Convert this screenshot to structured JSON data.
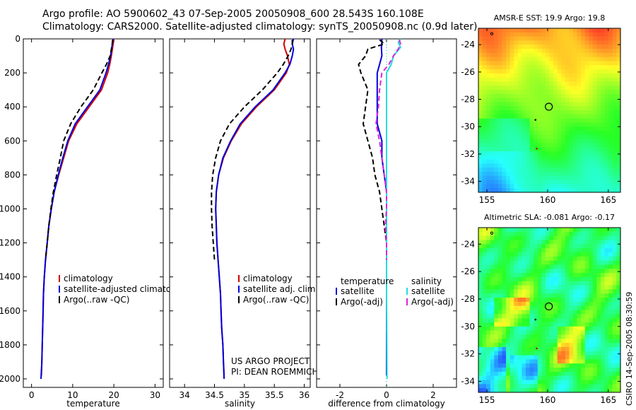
{
  "header": {
    "line1": "Argo profile: AO 5900602_43 07-Sep-2005 20050908_600 28.543S 160.108E",
    "line2": "Climatology: CARS2000. Satellite-adjusted climatology: synTS_20050908.nc (0.9d later)"
  },
  "colors": {
    "climatology": "#d40000",
    "satellite": "#0000dd",
    "argo": "#000000",
    "satellite_salinity": "#22dddd",
    "argo_salinity": "#dd22dd"
  },
  "side_label": "CSIRO 14-Sep-2005 08:30:59",
  "chart_data": [
    {
      "type": "line",
      "id": "temperature",
      "xlabel": "temperature",
      "xlim": [
        -2,
        32
      ],
      "ylim": [
        2050,
        0
      ],
      "xticks": [
        0,
        10,
        20,
        30
      ],
      "yticks": [
        0,
        200,
        400,
        600,
        800,
        1000,
        1200,
        1400,
        1600,
        1800,
        2000
      ],
      "legend": [
        "climatology",
        "satellite-adjusted climatology",
        "Argo(..raw -QC)"
      ],
      "series": [
        {
          "name": "climatology",
          "style": "solid",
          "color": "#d40000",
          "points": [
            [
              20.0,
              0
            ],
            [
              19.9,
              20
            ],
            [
              19.7,
              50
            ],
            [
              19.4,
              100
            ],
            [
              19.0,
              150
            ],
            [
              18.5,
              200
            ],
            [
              17.0,
              300
            ],
            [
              14.0,
              400
            ],
            [
              11.0,
              500
            ],
            [
              9.0,
              600
            ],
            [
              7.8,
              700
            ],
            [
              6.6,
              800
            ],
            [
              5.5,
              900
            ],
            [
              4.8,
              1000
            ],
            [
              4.2,
              1100
            ],
            [
              3.8,
              1200
            ],
            [
              3.4,
              1300
            ],
            [
              3.1,
              1400
            ],
            [
              2.9,
              1500
            ],
            [
              2.8,
              1600
            ],
            [
              2.7,
              1700
            ],
            [
              2.6,
              1800
            ],
            [
              2.5,
              1900
            ],
            [
              2.4,
              1980
            ]
          ]
        },
        {
          "name": "satellite-adjusted climatology",
          "style": "solid",
          "color": "#0000dd",
          "points": [
            [
              19.8,
              0
            ],
            [
              19.7,
              20
            ],
            [
              19.5,
              50
            ],
            [
              19.2,
              100
            ],
            [
              18.7,
              150
            ],
            [
              18.1,
              200
            ],
            [
              16.6,
              300
            ],
            [
              13.6,
              400
            ],
            [
              10.6,
              500
            ],
            [
              8.8,
              600
            ],
            [
              7.6,
              700
            ],
            [
              6.5,
              800
            ],
            [
              5.5,
              900
            ],
            [
              4.8,
              1000
            ],
            [
              4.2,
              1100
            ],
            [
              3.8,
              1200
            ],
            [
              3.4,
              1300
            ],
            [
              3.1,
              1400
            ],
            [
              2.9,
              1500
            ],
            [
              2.8,
              1600
            ],
            [
              2.7,
              1700
            ],
            [
              2.6,
              1800
            ],
            [
              2.5,
              1900
            ],
            [
              2.3,
              2000
            ]
          ]
        },
        {
          "name": "Argo(..raw -QC)",
          "style": "dashed",
          "color": "#000000",
          "points": [
            [
              19.7,
              5
            ],
            [
              19.6,
              30
            ],
            [
              19.4,
              60
            ],
            [
              19.1,
              100
            ],
            [
              18.2,
              150
            ],
            [
              17.1,
              200
            ],
            [
              15.0,
              300
            ],
            [
              12.0,
              400
            ],
            [
              9.5,
              500
            ],
            [
              7.8,
              600
            ],
            [
              7.0,
              700
            ],
            [
              6.1,
              800
            ],
            [
              5.3,
              900
            ],
            [
              4.7,
              1000
            ],
            [
              4.2,
              1100
            ],
            [
              3.8,
              1200
            ],
            [
              3.4,
              1300
            ]
          ]
        }
      ]
    },
    {
      "type": "line",
      "id": "salinity",
      "xlabel": "salinity",
      "xlim": [
        33.75,
        36.1
      ],
      "ylim": [
        2050,
        0
      ],
      "xticks": [
        34,
        34.5,
        35,
        35.5,
        36
      ],
      "legend": [
        "climatology",
        "satellite adj. clim.",
        "Argo(..raw -QC)"
      ],
      "annotation": [
        "US ARGO PROJECT",
        "PI: DEAN ROEMMICH"
      ],
      "series": [
        {
          "name": "climatology",
          "style": "solid",
          "color": "#d40000",
          "points": [
            [
              35.68,
              0
            ],
            [
              35.66,
              30
            ],
            [
              35.68,
              60
            ],
            [
              35.72,
              100
            ],
            [
              35.75,
              150
            ],
            [
              35.7,
              200
            ],
            [
              35.5,
              300
            ],
            [
              35.2,
              400
            ],
            [
              34.95,
              500
            ],
            [
              34.78,
              600
            ],
            [
              34.65,
              700
            ],
            [
              34.57,
              800
            ],
            [
              34.53,
              900
            ],
            [
              34.52,
              1000
            ],
            [
              34.53,
              1100
            ],
            [
              34.54,
              1200
            ],
            [
              34.56,
              1300
            ],
            [
              34.58,
              1400
            ],
            [
              34.6,
              1500
            ],
            [
              34.61,
              1600
            ],
            [
              34.62,
              1700
            ],
            [
              34.64,
              1800
            ],
            [
              34.65,
              1900
            ],
            [
              34.66,
              1980
            ]
          ]
        },
        {
          "name": "satellite adj. clim.",
          "style": "solid",
          "color": "#0000dd",
          "points": [
            [
              35.82,
              0
            ],
            [
              35.8,
              30
            ],
            [
              35.82,
              60
            ],
            [
              35.8,
              100
            ],
            [
              35.76,
              150
            ],
            [
              35.68,
              200
            ],
            [
              35.48,
              300
            ],
            [
              35.18,
              400
            ],
            [
              34.93,
              500
            ],
            [
              34.77,
              600
            ],
            [
              34.64,
              700
            ],
            [
              34.57,
              800
            ],
            [
              34.53,
              900
            ],
            [
              34.52,
              1000
            ],
            [
              34.53,
              1100
            ],
            [
              34.54,
              1200
            ],
            [
              34.56,
              1300
            ],
            [
              34.58,
              1400
            ],
            [
              34.6,
              1500
            ],
            [
              34.61,
              1600
            ],
            [
              34.62,
              1700
            ],
            [
              34.64,
              1800
            ],
            [
              34.65,
              1900
            ],
            [
              34.66,
              2000
            ]
          ]
        },
        {
          "name": "Argo(..raw -QC)",
          "style": "dashed",
          "color": "#000000",
          "points": [
            [
              35.8,
              5
            ],
            [
              35.8,
              30
            ],
            [
              35.78,
              60
            ],
            [
              35.73,
              100
            ],
            [
              35.65,
              150
            ],
            [
              35.55,
              200
            ],
            [
              35.3,
              300
            ],
            [
              35.0,
              400
            ],
            [
              34.75,
              500
            ],
            [
              34.6,
              600
            ],
            [
              34.52,
              700
            ],
            [
              34.47,
              800
            ],
            [
              34.45,
              900
            ],
            [
              34.45,
              1000
            ],
            [
              34.46,
              1100
            ],
            [
              34.48,
              1200
            ],
            [
              34.5,
              1300
            ]
          ]
        }
      ]
    },
    {
      "type": "line",
      "id": "difference",
      "xlabel": "difference from climatology",
      "xlim": [
        -3,
        3
      ],
      "ylim": [
        2050,
        0
      ],
      "xticks": [
        -2,
        0,
        2
      ],
      "legend_temperature_heading": "temperature",
      "legend_salinity_heading": "salinity",
      "legend": [
        "satellite",
        "Argo(-adj)",
        "satellite",
        "Argo(-adj)"
      ],
      "series": [
        {
          "name": "satellite",
          "group": "temperature",
          "style": "solid",
          "color": "#0000dd",
          "points": [
            [
              -0.2,
              0
            ],
            [
              -0.2,
              20
            ],
            [
              -0.22,
              50
            ],
            [
              -0.2,
              100
            ],
            [
              -0.3,
              150
            ],
            [
              -0.4,
              200
            ],
            [
              -0.4,
              300
            ],
            [
              -0.4,
              400
            ],
            [
              -0.4,
              500
            ],
            [
              -0.2,
              600
            ],
            [
              -0.2,
              700
            ],
            [
              -0.1,
              800
            ],
            [
              0,
              900
            ],
            [
              0,
              1000
            ],
            [
              0,
              1500
            ],
            [
              0,
              1980
            ]
          ]
        },
        {
          "name": "Argo(-adj)",
          "group": "temperature",
          "style": "dashed",
          "color": "#000000",
          "points": [
            [
              -0.3,
              5
            ],
            [
              -0.1,
              30
            ],
            [
              -0.8,
              60
            ],
            [
              -0.9,
              100
            ],
            [
              -1.2,
              150
            ],
            [
              -1.1,
              200
            ],
            [
              -0.8,
              300
            ],
            [
              -0.9,
              400
            ],
            [
              -1.0,
              500
            ],
            [
              -0.8,
              600
            ],
            [
              -0.6,
              700
            ],
            [
              -0.5,
              800
            ],
            [
              -0.3,
              900
            ],
            [
              -0.2,
              1000
            ],
            [
              -0.1,
              1100
            ],
            [
              0,
              1200
            ],
            [
              0,
              1300
            ]
          ]
        },
        {
          "name": "satellite",
          "group": "salinity",
          "style": "solid",
          "color": "#22dddd",
          "points": [
            [
              0.6,
              0
            ],
            [
              0.5,
              20
            ],
            [
              0.6,
              50
            ],
            [
              0.3,
              100
            ],
            [
              0.2,
              150
            ],
            [
              0,
              200
            ],
            [
              0,
              300
            ],
            [
              0,
              500
            ],
            [
              0,
              900
            ],
            [
              0,
              1200
            ],
            [
              0,
              1500
            ],
            [
              0.02,
              2000
            ]
          ]
        },
        {
          "name": "Argo(-adj)",
          "group": "salinity",
          "style": "dashed",
          "color": "#dd22dd",
          "points": [
            [
              0.55,
              5
            ],
            [
              0.6,
              30
            ],
            [
              0.5,
              60
            ],
            [
              0.3,
              100
            ],
            [
              0.1,
              150
            ],
            [
              -0.2,
              200
            ],
            [
              -0.3,
              300
            ],
            [
              -0.35,
              400
            ],
            [
              -0.45,
              500
            ],
            [
              -0.3,
              600
            ],
            [
              -0.2,
              700
            ],
            [
              -0.1,
              800
            ],
            [
              0,
              900
            ],
            [
              0,
              1000
            ],
            [
              -0.05,
              1100
            ],
            [
              0,
              1200
            ],
            [
              0,
              1300
            ]
          ]
        }
      ]
    },
    {
      "type": "heatmap",
      "id": "sst-map",
      "title": "AMSR-E SST: 19.9 Argo: 19.8",
      "xlim": [
        154.3,
        166
      ],
      "ylim": [
        -34.8,
        -22.8
      ],
      "xticks": [
        155,
        160,
        165
      ],
      "yticks": [
        -24,
        -26,
        -28,
        -30,
        -32,
        -34
      ],
      "marker": {
        "lon": 160.1,
        "lat": -28.54
      }
    },
    {
      "type": "heatmap",
      "id": "sla-map",
      "title": "Altimetric SLA: -0.081 Argo: -0.17",
      "xlim": [
        154.3,
        166
      ],
      "ylim": [
        -34.8,
        -22.8
      ],
      "xticks": [
        155,
        160,
        165
      ],
      "yticks": [
        -24,
        -26,
        -28,
        -30,
        -32,
        -34
      ],
      "marker": {
        "lon": 160.1,
        "lat": -28.54
      }
    }
  ]
}
